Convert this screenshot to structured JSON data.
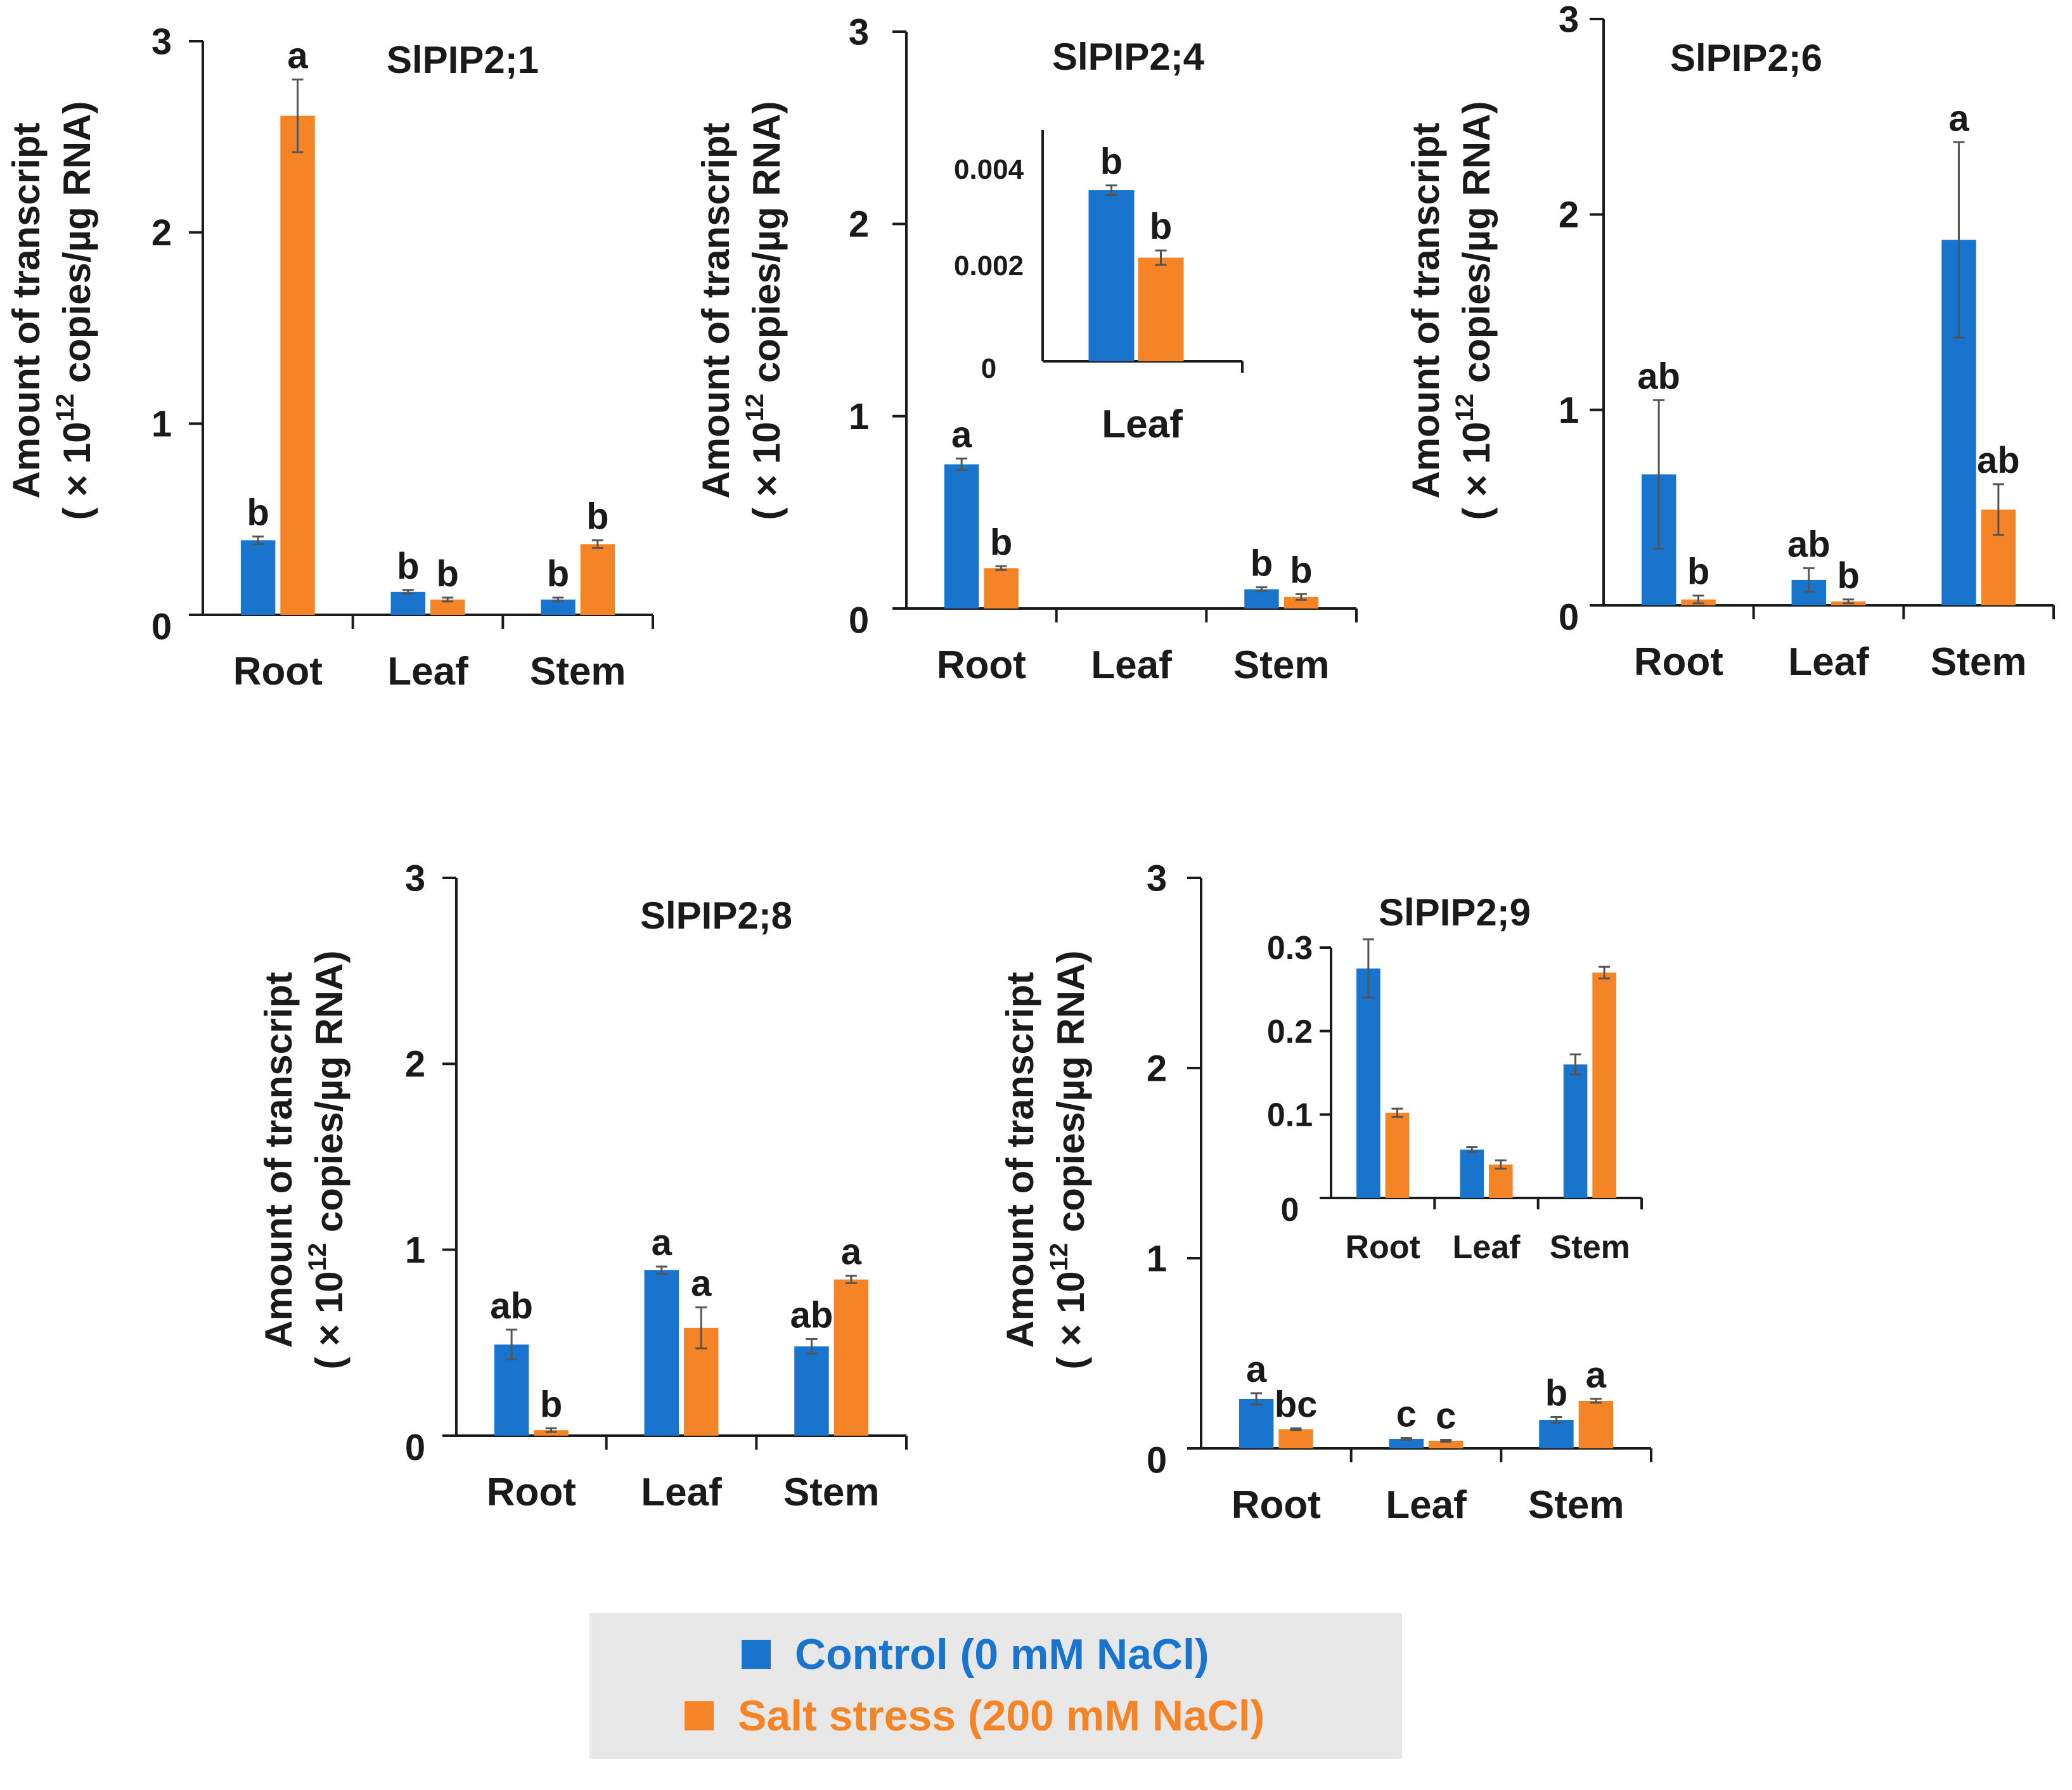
{
  "figure": {
    "y_axis_label_line1": "Amount of transcript",
    "y_axis_label_line2": "( × 10",
    "y_axis_label_exponent": "12",
    "y_axis_label_line2_suffix": " copies/µg RNA)"
  },
  "colors": {
    "control": "#1874cd",
    "salt": "#f58426",
    "axis": "#1a1a1a",
    "error_bar": "#555555"
  },
  "legend": {
    "items": [
      {
        "key": "control",
        "label": "Control (0 mM NaCl)",
        "color": "#1874cd"
      },
      {
        "key": "salt",
        "label": "Salt stress (200 mM NaCl)",
        "color": "#f58426"
      }
    ]
  },
  "chart_data": [
    {
      "id": "p21",
      "type": "bar",
      "title": "SlPIP2;1",
      "categories": [
        "Root",
        "Leaf",
        "Stem"
      ],
      "ylim": [
        0,
        3
      ],
      "yticks": [
        0,
        1,
        2,
        3
      ],
      "ytick_labels": [
        "0",
        "1",
        "2",
        "3"
      ],
      "ylabel": "Amount of transcript (× 10^12 copies/µg RNA)",
      "series": [
        {
          "name": "Control (0 mM NaCl)",
          "values": [
            0.39,
            0.12,
            0.08
          ],
          "errors": [
            0.02,
            0.01,
            0.01
          ],
          "letters": [
            "b",
            "b",
            "b"
          ]
        },
        {
          "name": "Salt stress (200 mM NaCl)",
          "values": [
            2.61,
            0.08,
            0.37
          ],
          "errors": [
            0.19,
            0.01,
            0.02
          ],
          "letters": [
            "a",
            "b",
            "b"
          ]
        }
      ],
      "inset": null
    },
    {
      "id": "p24",
      "type": "bar",
      "title": "SlPIP2;4",
      "categories": [
        "Root",
        "Leaf",
        "Stem"
      ],
      "ylim": [
        0,
        3
      ],
      "yticks": [
        0,
        1,
        2,
        3
      ],
      "ytick_labels": [
        "0",
        "1",
        "2",
        "3"
      ],
      "ylabel": "Amount of transcript (× 10^12 copies/µg RNA)",
      "series": [
        {
          "name": "Control (0 mM NaCl)",
          "values": [
            0.75,
            null,
            0.1
          ],
          "errors": [
            0.03,
            null,
            0.01
          ],
          "letters": [
            "a",
            "",
            "b"
          ]
        },
        {
          "name": "Salt stress (200 mM NaCl)",
          "values": [
            0.21,
            null,
            0.06
          ],
          "errors": [
            0.01,
            null,
            0.015
          ],
          "letters": [
            "b",
            "",
            "b"
          ]
        }
      ],
      "inset": {
        "type": "bar",
        "categories": [
          "Leaf"
        ],
        "ylim": [
          0,
          0.0048
        ],
        "yticks": [
          0,
          0.002,
          0.004
        ],
        "ytick_labels": [
          "0",
          "0.002",
          "0.004"
        ],
        "series": [
          {
            "name": "Control (0 mM NaCl)",
            "values": [
              0.00355
            ],
            "errors": [
              0.0001
            ],
            "letters": [
              "b"
            ]
          },
          {
            "name": "Salt stress (200 mM NaCl)",
            "values": [
              0.00215
            ],
            "errors": [
              0.00015
            ],
            "letters": [
              "b"
            ]
          }
        ]
      }
    },
    {
      "id": "p26",
      "type": "bar",
      "title": "SlPIP2;6",
      "categories": [
        "Root",
        "Leaf",
        "Stem"
      ],
      "ylim": [
        0,
        3
      ],
      "yticks": [
        0,
        1,
        2,
        3
      ],
      "ytick_labels": [
        "0",
        "1",
        "2",
        "3"
      ],
      "ylabel": "Amount of transcript (× 10^12 copies/µg RNA)",
      "series": [
        {
          "name": "Control (0 mM NaCl)",
          "values": [
            0.67,
            0.13,
            1.87
          ],
          "errors": [
            0.38,
            0.06,
            0.5
          ],
          "letters": [
            "ab",
            "ab",
            "a"
          ]
        },
        {
          "name": "Salt stress (200 mM NaCl)",
          "values": [
            0.03,
            0.02,
            0.49
          ],
          "errors": [
            0.02,
            0.01,
            0.13
          ],
          "letters": [
            "b",
            "b",
            "ab"
          ]
        }
      ],
      "inset": null
    },
    {
      "id": "p28",
      "type": "bar",
      "title": "SlPIP2;8",
      "categories": [
        "Root",
        "Leaf",
        "Stem"
      ],
      "ylim": [
        0,
        3
      ],
      "yticks": [
        0,
        1,
        2,
        3
      ],
      "ytick_labels": [
        "0",
        "1",
        "2",
        "3"
      ],
      "ylabel": "Amount of transcript (× 10^12 copies/µg RNA)",
      "series": [
        {
          "name": "Control (0 mM NaCl)",
          "values": [
            0.49,
            0.89,
            0.48
          ],
          "errors": [
            0.08,
            0.02,
            0.04
          ],
          "letters": [
            "ab",
            "a",
            "ab"
          ]
        },
        {
          "name": "Salt stress (200 mM NaCl)",
          "values": [
            0.03,
            0.58,
            0.84
          ],
          "errors": [
            0.01,
            0.11,
            0.02
          ],
          "letters": [
            "b",
            "a",
            "a"
          ]
        }
      ],
      "inset": null
    },
    {
      "id": "p29",
      "type": "bar",
      "title": "SlPIP2;9",
      "categories": [
        "Root",
        "Leaf",
        "Stem"
      ],
      "ylim": [
        0,
        3
      ],
      "yticks": [
        0,
        1,
        2,
        3
      ],
      "ytick_labels": [
        "0",
        "1",
        "2",
        "3"
      ],
      "ylabel": "Amount of transcript (× 10^12 copies/µg RNA)",
      "series": [
        {
          "name": "Control (0 mM NaCl)",
          "values": [
            0.26,
            0.05,
            0.15
          ],
          "errors": [
            0.03,
            0.005,
            0.015
          ],
          "letters": [
            "a",
            "c",
            "b"
          ]
        },
        {
          "name": "Salt stress (200 mM NaCl)",
          "values": [
            0.1,
            0.04,
            0.25
          ],
          "errors": [
            0.005,
            0.005,
            0.01
          ],
          "letters": [
            "bc",
            "c",
            "a"
          ]
        }
      ],
      "inset": {
        "type": "bar",
        "categories": [
          "Root",
          "Leaf",
          "Stem"
        ],
        "ylim": [
          0,
          0.3
        ],
        "yticks": [
          0,
          0.1,
          0.2,
          0.3
        ],
        "ytick_labels": [
          "0",
          "0.1",
          "0.2",
          "0.3"
        ],
        "series": [
          {
            "name": "Control (0 mM NaCl)",
            "values": [
              0.275,
              0.058,
              0.16
            ],
            "errors": [
              0.035,
              0.003,
              0.012
            ],
            "letters": [
              "",
              "",
              ""
            ]
          },
          {
            "name": "Salt stress (200 mM NaCl)",
            "values": [
              0.102,
              0.04,
              0.27
            ],
            "errors": [
              0.005,
              0.005,
              0.007
            ],
            "letters": [
              "",
              "",
              ""
            ]
          }
        ]
      }
    }
  ]
}
